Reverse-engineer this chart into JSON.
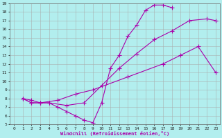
{
  "xlabel": "Windchill (Refroidissement éolien,°C)",
  "bg_color": "#b2eeee",
  "grid_color": "#aaaaaa",
  "line_color": "#aa00aa",
  "xlim": [
    -0.5,
    23.5
  ],
  "ylim": [
    5,
    19
  ],
  "xticks": [
    0,
    1,
    2,
    3,
    4,
    5,
    6,
    7,
    8,
    9,
    10,
    11,
    12,
    13,
    14,
    15,
    16,
    17,
    18,
    19,
    20,
    21,
    22,
    23
  ],
  "yticks": [
    5,
    6,
    7,
    8,
    9,
    10,
    11,
    12,
    13,
    14,
    15,
    16,
    17,
    18,
    19
  ],
  "curve1_x": [
    1,
    2,
    3,
    4,
    5,
    6,
    7,
    8,
    9,
    10,
    11,
    12,
    13,
    14,
    15,
    16,
    17,
    18
  ],
  "curve1_y": [
    8,
    7.5,
    7.5,
    7.5,
    7.0,
    6.5,
    6.0,
    5.5,
    5.2,
    7.5,
    11.5,
    13.0,
    15.2,
    16.5,
    18.2,
    18.8,
    18.8,
    18.5
  ],
  "curve2_x": [
    1,
    2,
    3,
    4,
    6,
    8,
    10,
    12,
    14,
    16,
    18,
    20,
    22,
    23
  ],
  "curve2_y": [
    8,
    7.8,
    7.5,
    7.5,
    7.2,
    7.5,
    9.5,
    11.5,
    13.2,
    14.8,
    15.8,
    17.0,
    17.2,
    17.0
  ],
  "curve3_x": [
    1,
    2,
    3,
    5,
    7,
    9,
    13,
    17,
    19,
    21,
    23
  ],
  "curve3_y": [
    8,
    7.5,
    7.5,
    7.8,
    8.5,
    9.0,
    10.5,
    12.0,
    13.0,
    14.0,
    11.0
  ]
}
